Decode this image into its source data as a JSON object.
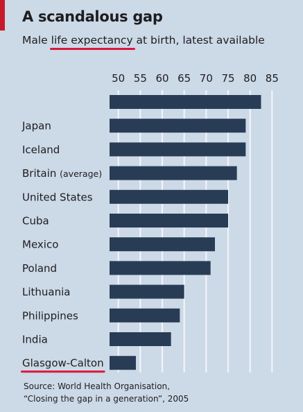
{
  "title": "A scandalous gap",
  "subtitle": {
    "before": "Male ",
    "highlight": "life expectancy",
    "after": " at birth, latest available"
  },
  "source_line1": "Source: World Health Organisation,",
  "source_line2": "“Closing the gap in a generation”, 2005",
  "colors": {
    "bar": "#283d55",
    "background": "#ccd9e7",
    "gridline": "#f2f4f8",
    "highlight": "#d9183b"
  },
  "chart_data": {
    "type": "bar",
    "orientation": "horizontal",
    "xlim": [
      48,
      87
    ],
    "xticks": [
      50,
      55,
      60,
      65,
      70,
      75,
      80,
      85
    ],
    "grid": true,
    "categories": [
      "",
      "Japan",
      "Iceland",
      "Britain (average)",
      "United States",
      "Cuba",
      "Mexico",
      "Poland",
      "Lithuania",
      "Philippines",
      "India",
      "Glasgow-Calton"
    ],
    "values": [
      82.5,
      79,
      79,
      77,
      75,
      75,
      72,
      71,
      65,
      64,
      62,
      54
    ],
    "highlighted_category": "Glasgow-Calton"
  }
}
